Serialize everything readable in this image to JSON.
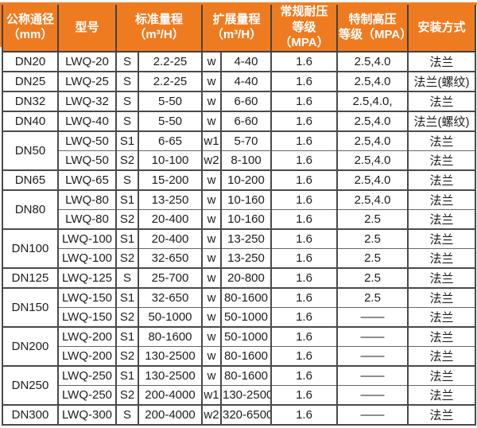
{
  "colors": {
    "header_bg": "#ef7b21",
    "header_text": "#ffffff",
    "border_dark": "#3d3d3d",
    "border_inner": "#4a4a4a",
    "body_text": "#1d1d1d"
  },
  "table": {
    "columns": [
      {
        "id": "dn",
        "lines": [
          "公称通径",
          "（mm）"
        ]
      },
      {
        "id": "model",
        "lines": [
          "型号"
        ]
      },
      {
        "id": "std",
        "lines": [
          "标准量程",
          "（m³/H）"
        ]
      },
      {
        "id": "ext",
        "lines": [
          "扩展量程",
          "（m³/H）"
        ]
      },
      {
        "id": "normal",
        "lines": [
          "常规耐压",
          "等级（MPA）"
        ]
      },
      {
        "id": "high",
        "lines": [
          "特制高压",
          "等级（MPA）"
        ]
      },
      {
        "id": "install",
        "lines": [
          "安装方式"
        ]
      }
    ],
    "rows": [
      {
        "dn": "DN20",
        "dn_rowspan": 1,
        "model": "LWQ-20",
        "s": "S",
        "std": "2.2-25",
        "w": "w",
        "ext": "4-40",
        "normal": "1.6",
        "high": "2.5,4.0",
        "install": "法兰"
      },
      {
        "dn": "DN25",
        "dn_rowspan": 1,
        "model": "LWQ-25",
        "s": "S",
        "std": "2.2-25",
        "w": "w",
        "ext": "4-40",
        "normal": "1.6",
        "high": "2.5,4.0",
        "install": "法兰(螺纹)"
      },
      {
        "dn": "DN32",
        "dn_rowspan": 1,
        "model": "LWQ-32",
        "s": "S",
        "std": "5-50",
        "w": "w",
        "ext": "6-60",
        "normal": "1.6",
        "high": "2.5,4.0,",
        "install": "法兰"
      },
      {
        "dn": "DN40",
        "dn_rowspan": 1,
        "model": "LWQ-40",
        "s": "S",
        "std": "5-50",
        "w": "w",
        "ext": "6-60",
        "normal": "1.6",
        "high": "2.5,4.0",
        "install": "法兰(螺纹)"
      },
      {
        "dn": "DN50",
        "dn_rowspan": 2,
        "model": "LWQ-50",
        "s": "S1",
        "std": "6-65",
        "w": "w1",
        "ext": "5-70",
        "normal": "1.6",
        "high": "2.5,4.0",
        "install": "法兰"
      },
      {
        "dn": null,
        "model": "LWQ-50",
        "s": "S2",
        "std": "10-100",
        "w": "w2",
        "ext": "8-100",
        "normal": "1.6",
        "high": "2.5,4.0",
        "install": "法兰"
      },
      {
        "dn": "DN65",
        "dn_rowspan": 1,
        "model": "LWQ-65",
        "s": "S",
        "std": "15-200",
        "w": "w",
        "ext": "10-200",
        "normal": "1.6",
        "high": "2.5,4.0",
        "install": "法兰"
      },
      {
        "dn": "DN80",
        "dn_rowspan": 2,
        "model": "LWQ-80",
        "s": "S1",
        "std": "13-250",
        "w": "w",
        "ext": "10-160",
        "normal": "1.6",
        "high": "2.5,4.0",
        "install": "法兰"
      },
      {
        "dn": null,
        "model": "LWQ-80",
        "s": "S2",
        "std": "20-400",
        "w": "w",
        "ext": "10-160",
        "normal": "1.6",
        "high": "2.5",
        "install": "法兰"
      },
      {
        "dn": "DN100",
        "dn_rowspan": 2,
        "model": "LWQ-100",
        "s": "S1",
        "std": "20-400",
        "w": "w",
        "ext": "13-250",
        "normal": "1.6",
        "high": "2.5",
        "install": "法兰"
      },
      {
        "dn": null,
        "model": "LWQ-100",
        "s": "S2",
        "std": "32-650",
        "w": "w",
        "ext": "13-250",
        "normal": "1.6",
        "high": "2.5",
        "install": "法兰"
      },
      {
        "dn": "DN125",
        "dn_rowspan": 1,
        "model": "LWQ-125",
        "s": "S",
        "std": "25-700",
        "w": "w",
        "ext": "20-800",
        "normal": "1.6",
        "high": "2.5",
        "install": "法兰"
      },
      {
        "dn": "DN150",
        "dn_rowspan": 2,
        "model": "LWQ-150",
        "s": "S1",
        "std": "32-650",
        "w": "w",
        "ext": "80-1600",
        "normal": "1.6",
        "high": "2.5",
        "install": "法兰"
      },
      {
        "dn": null,
        "model": "LWQ-150",
        "s": "S2",
        "std": "50-1000",
        "w": "w",
        "ext": "50-1000",
        "normal": "1.6",
        "high": "——",
        "install": "法兰"
      },
      {
        "dn": "DN200",
        "dn_rowspan": 2,
        "model": "LWQ-200",
        "s": "S1",
        "std": "80-1600",
        "w": "w",
        "ext": "50-1000",
        "normal": "1.6",
        "high": "——",
        "install": "法兰"
      },
      {
        "dn": null,
        "model": "LWQ-200",
        "s": "S2",
        "std": "130-2500",
        "w": "w",
        "ext": "80-1600",
        "normal": "1.6",
        "high": "——",
        "install": "法兰"
      },
      {
        "dn": "DN250",
        "dn_rowspan": 2,
        "model": "LWQ-250",
        "s": "S1",
        "std": "130-2500",
        "w": "w",
        "ext": "80-1600",
        "normal": "1.6",
        "high": "——",
        "install": "法兰"
      },
      {
        "dn": null,
        "model": "LWQ-250",
        "s": "S2",
        "std": "200-4000",
        "w": "w1",
        "ext": "130-2500",
        "normal": "1.6",
        "high": "——",
        "install": "法兰"
      },
      {
        "dn": "DN300",
        "dn_rowspan": 1,
        "model": "LWQ-300",
        "s": "S",
        "std": "200-4000",
        "w": "w2",
        "ext": "320-6500",
        "normal": "1.6",
        "high": "——",
        "install": "法兰"
      }
    ]
  }
}
